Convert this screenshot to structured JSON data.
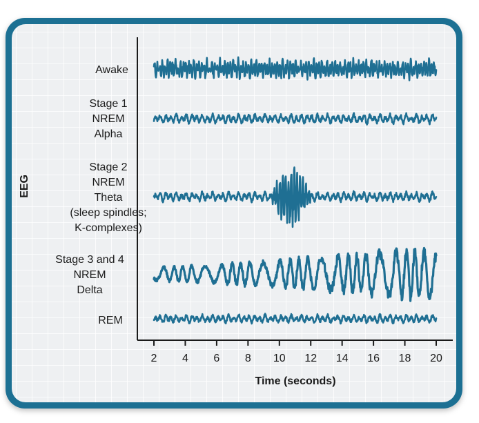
{
  "colors": {
    "frame": "#1f6f93",
    "grid_bg": "#eef0f2",
    "grid_line": "#ffffff",
    "trace": "#1f6f93",
    "axis": "#1a1a1a"
  },
  "chart_data": {
    "type": "line",
    "title": "",
    "xlabel": "Time (seconds)",
    "ylabel": "EEG",
    "xlim": [
      2,
      20
    ],
    "x_ticks": [
      "2",
      "4",
      "6",
      "8",
      "10",
      "12",
      "14",
      "16",
      "18",
      "20"
    ],
    "grid": true,
    "series": [
      {
        "name": "Awake",
        "label_lines": [
          "Awake"
        ],
        "pattern": "high-frequency, low-amplitude waves",
        "relative_amplitude": 0.3,
        "cycles_per_second": 6
      },
      {
        "name": "Stage 1 NREM Alpha",
        "label_lines": [
          "Stage 1",
          "NREM",
          "Alpha"
        ],
        "pattern": "alpha waves, low amplitude",
        "relative_amplitude": 0.15,
        "cycles_per_second": 3
      },
      {
        "name": "Stage 2 NREM Theta (sleep spindles; K-complexes)",
        "label_lines": [
          "Stage 2",
          "NREM",
          "Theta",
          "(sleep spindles;",
          "K-complexes)"
        ],
        "pattern": "theta waves with a sleep spindle / K-complex burst",
        "relative_amplitude": 0.15,
        "cycles_per_second": 3,
        "burst_window": [
          9.5,
          12.0
        ],
        "burst_relative_amplitude": 0.9
      },
      {
        "name": "Stage 3 and 4 NREM Delta",
        "label_lines": [
          "Stage 3 and 4",
          "NREM",
          "Delta"
        ],
        "pattern": "delta waves, amplitude growing over time",
        "relative_amplitude": 0.25,
        "relative_amplitude_end": 1.0,
        "cycles_per_second": 1.5
      },
      {
        "name": "REM",
        "label_lines": [
          "REM"
        ],
        "pattern": "low-amplitude mixed-frequency waves",
        "relative_amplitude": 0.13,
        "cycles_per_second": 3
      }
    ]
  }
}
